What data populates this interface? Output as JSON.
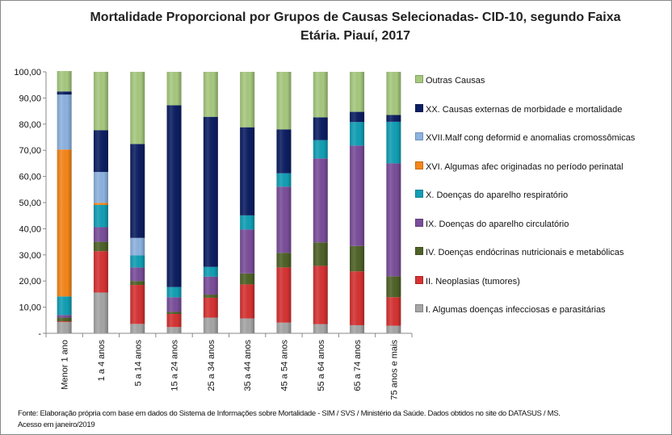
{
  "chart_data": {
    "type": "bar",
    "stacked": true,
    "title": "Mortalidade Proporcional por Grupos de Causas Selecionadas- CID-10, segundo Faixa Etária. Piauí, 2017",
    "title_line1": "Mortalidade Proporcional por Grupos de Causas Selecionadas- CID-10, segundo Faixa",
    "title_line2": "Etária. Piauí, 2017",
    "xlabel": "",
    "ylabel": "",
    "ylim": [
      0,
      100
    ],
    "yticks": [
      "-",
      "10,00",
      "20,00",
      "30,00",
      "40,00",
      "50,00",
      "60,00",
      "70,00",
      "80,00",
      "90,00",
      "100,00"
    ],
    "grid": false,
    "legend_position": "right",
    "categories": [
      "Menor 1 ano",
      "1 a 4 anos",
      "5 a 14 anos",
      "15 a 24 anos",
      "25 a 34 anos",
      "35 a 44 anos",
      "45 a 54 anos",
      "55 a 64 anos",
      "65 a 74 anos",
      "75 anos e mais"
    ],
    "series": [
      {
        "name": "I.   Algumas doenças infecciosas e parasitárias",
        "color": "#a6a6a6",
        "values": [
          4.3,
          15.6,
          3.6,
          2.4,
          6.0,
          5.7,
          4.1,
          3.5,
          3.1,
          2.9
        ]
      },
      {
        "name": "II.  Neoplasias (tumores)",
        "color": "#d63333",
        "values": [
          0.3,
          15.8,
          14.9,
          5.0,
          7.6,
          13.0,
          21.1,
          22.3,
          20.6,
          10.9
        ]
      },
      {
        "name": "IV.  Doenças endócrinas nutricionais e metabólicas",
        "color": "#4f6228",
        "values": [
          1.4,
          3.6,
          1.5,
          0.8,
          1.2,
          4.2,
          5.6,
          9.0,
          9.7,
          8.0
        ]
      },
      {
        "name": "IX.  Doenças do aparelho circulatório",
        "color": "#7a4e9a",
        "values": [
          1.0,
          5.6,
          5.2,
          5.6,
          6.9,
          16.8,
          25.3,
          32.1,
          38.4,
          43.2
        ]
      },
      {
        "name": "X.   Doenças do aparelho respiratório",
        "color": "#129fb5",
        "values": [
          7.1,
          8.5,
          4.6,
          3.9,
          3.7,
          5.4,
          5.1,
          7.0,
          9.0,
          15.9
        ]
      },
      {
        "name": "XVI. Algumas afec originadas no período perinatal",
        "color": "#f5861a",
        "values": [
          56.2,
          0.8,
          0,
          0,
          0,
          0,
          0,
          0,
          0,
          0
        ]
      },
      {
        "name": "XVII.Malf cong deformid e anomalias cromossômicas",
        "color": "#8db3e0",
        "values": [
          21.0,
          11.8,
          6.7,
          0,
          0,
          0,
          0,
          0,
          0,
          0
        ]
      },
      {
        "name": "XX.  Causas externas de morbidade e mortalidade",
        "color": "#0d1f63",
        "values": [
          1.2,
          16.0,
          35.9,
          69.5,
          57.4,
          33.7,
          16.8,
          8.7,
          3.9,
          2.6
        ]
      },
      {
        "name": "Outras Causas",
        "color": "#a7c97f",
        "values": [
          7.8,
          22.3,
          27.6,
          12.8,
          17.2,
          21.2,
          22.0,
          17.4,
          15.3,
          16.5
        ]
      }
    ]
  },
  "footnote": {
    "line1": "Fonte: Elaboração própria com base em dados do  Sistema de Informações sobre Mortalidade - SIM / SVS / Ministério da Saúde. Dados obtidos no site do DATASUS / MS.",
    "line2": "Acesso em janeiro/2019"
  }
}
